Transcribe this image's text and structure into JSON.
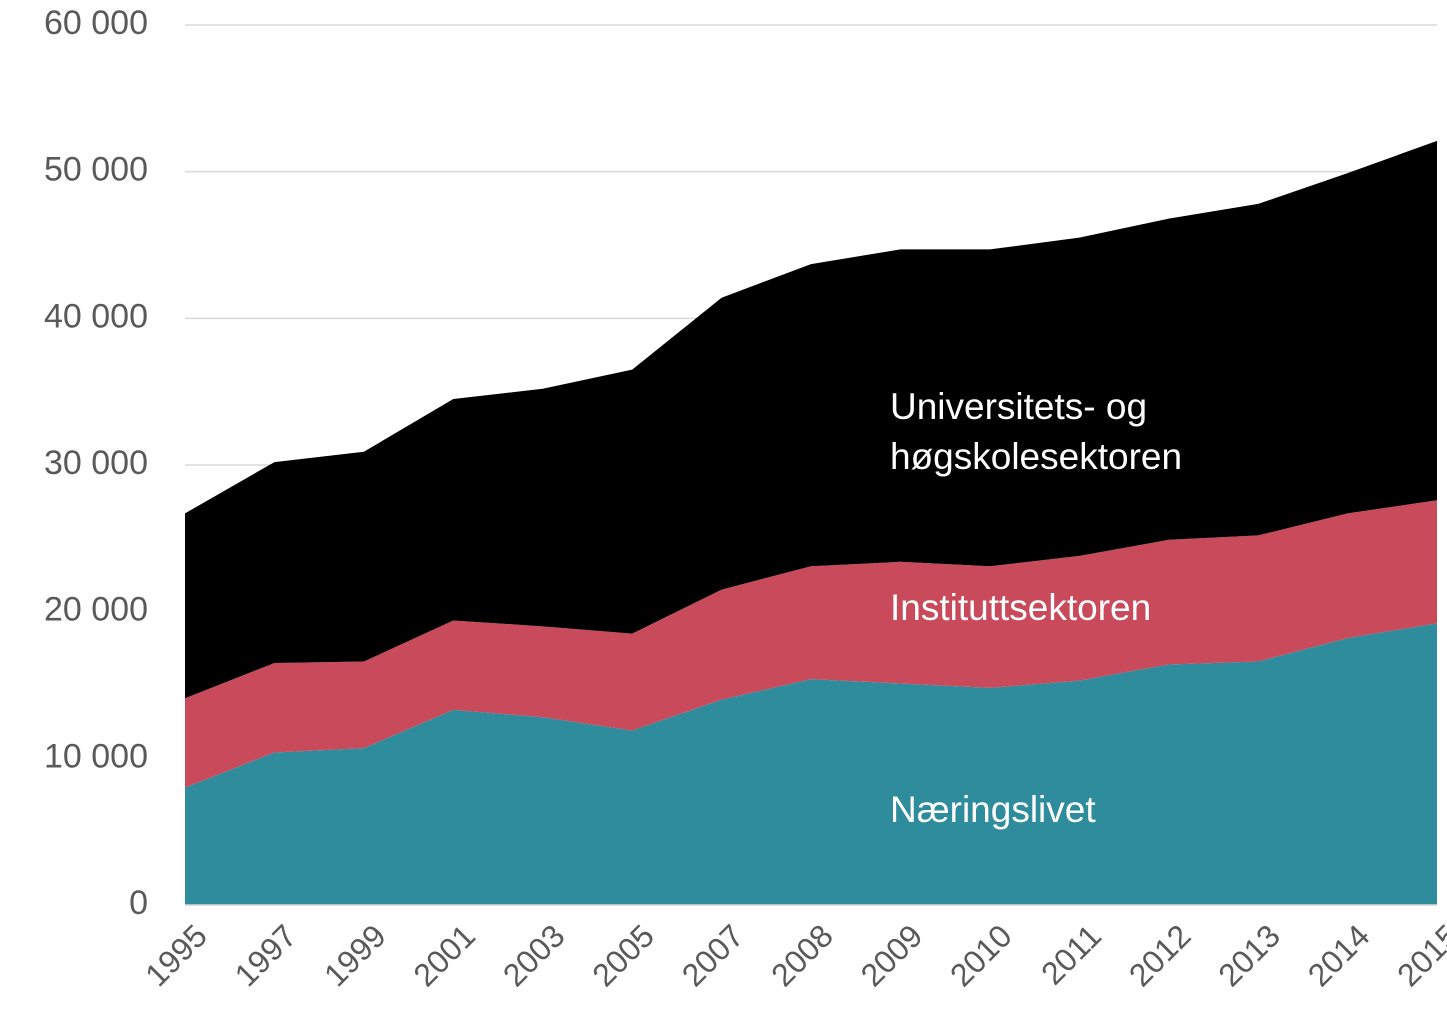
{
  "chart_data": {
    "type": "stacked_area",
    "categories": [
      "1995",
      "1997",
      "1999",
      "2001",
      "2003",
      "2005",
      "2007",
      "2008",
      "2009",
      "2010",
      "2011",
      "2012",
      "2013",
      "2014",
      "2015"
    ],
    "series": [
      {
        "name": "Næringslivet",
        "color": "#2e8c9c",
        "values": [
          8000,
          10400,
          10700,
          13300,
          12800,
          11900,
          14000,
          15400,
          15100,
          14800,
          15300,
          16400,
          16600,
          18200,
          19200
        ]
      },
      {
        "name": "Instituttsektoren",
        "color": "#c94a5a",
        "values": [
          6100,
          6100,
          5900,
          6100,
          6200,
          6600,
          7500,
          7700,
          8300,
          8300,
          8500,
          8500,
          8600,
          8500,
          8400
        ]
      },
      {
        "name": "Universitets- og høgskolesektoren",
        "color": "#000000",
        "values": [
          12600,
          13700,
          14300,
          15100,
          16200,
          18000,
          19900,
          20600,
          21300,
          21600,
          21700,
          21900,
          22600,
          23200,
          24500
        ]
      }
    ],
    "ylim": [
      0,
      60000
    ],
    "yticks": [
      0,
      {
        "value": 10000,
        "label": "10 000"
      },
      {
        "value": 20000,
        "label": "20 000"
      },
      {
        "value": 30000,
        "label": "30 000"
      },
      {
        "value": 40000,
        "label": "40 000"
      },
      {
        "value": 50000,
        "label": "50 000"
      },
      {
        "value": 60000,
        "label": "60 000"
      }
    ],
    "grid": true
  }
}
